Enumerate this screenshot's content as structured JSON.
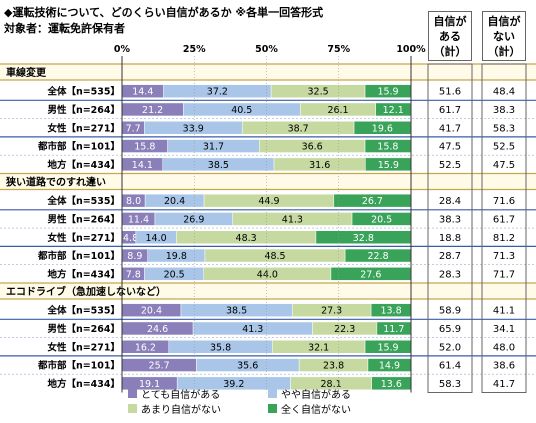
{
  "title": "◆運転技術について、どのくらい自信があるか ※各単一回答形式",
  "subtitle": "対象者：運転免許保有者",
  "header_confident": [
    "自信が",
    "ある",
    "（計）"
  ],
  "header_not_confident": [
    "自信が",
    "ない",
    "（計）"
  ],
  "chart_data": {
    "type": "bar",
    "orientation": "horizontal",
    "stacked": true,
    "xlim": [
      0,
      100
    ],
    "x_ticks": [
      "0%",
      "25%",
      "50%",
      "75%",
      "100%"
    ],
    "series": [
      {
        "name": "とても自信がある",
        "color": "#8a7fb8"
      },
      {
        "name": "やや自信がある",
        "color": "#a9c6e8"
      },
      {
        "name": "あまり自信がない",
        "color": "#c5d9a0"
      },
      {
        "name": "全く自信がない",
        "color": "#3aa35a"
      }
    ],
    "groups": [
      {
        "title": "車線変更",
        "rows": [
          {
            "label": "全体【n=535】",
            "values": [
              14.4,
              37.2,
              32.5,
              15.9
            ],
            "confident": "51.6",
            "not_confident": "48.4"
          },
          {
            "label": "男性【n=264】",
            "values": [
              21.2,
              40.5,
              26.1,
              12.1
            ],
            "confident": "61.7",
            "not_confident": "38.3"
          },
          {
            "label": "女性【n=271】",
            "values": [
              7.7,
              33.9,
              38.7,
              19.6
            ],
            "confident": "41.7",
            "not_confident": "58.3"
          },
          {
            "label": "都市部【n=101】",
            "values": [
              15.8,
              31.7,
              36.6,
              15.8
            ],
            "confident": "47.5",
            "not_confident": "52.5"
          },
          {
            "label": "地方【n=434】",
            "values": [
              14.1,
              38.5,
              31.6,
              15.9
            ],
            "confident": "52.5",
            "not_confident": "47.5"
          }
        ]
      },
      {
        "title": "狭い道路でのすれ違い",
        "rows": [
          {
            "label": "全体【n=535】",
            "values": [
              8.0,
              20.4,
              44.9,
              26.7
            ],
            "confident": "28.4",
            "not_confident": "71.6"
          },
          {
            "label": "男性【n=264】",
            "values": [
              11.4,
              26.9,
              41.3,
              20.5
            ],
            "confident": "38.3",
            "not_confident": "61.7"
          },
          {
            "label": "女性【n=271】",
            "values": [
              4.8,
              14.0,
              48.3,
              32.8
            ],
            "confident": "18.8",
            "not_confident": "81.2"
          },
          {
            "label": "都市部【n=101】",
            "values": [
              8.9,
              19.8,
              48.5,
              22.8
            ],
            "confident": "28.7",
            "not_confident": "71.3"
          },
          {
            "label": "地方【n=434】",
            "values": [
              7.8,
              20.5,
              44.0,
              27.6
            ],
            "confident": "28.3",
            "not_confident": "71.7"
          }
        ]
      },
      {
        "title": "エコドライブ（急加速しないなど）",
        "rows": [
          {
            "label": "全体【n=535】",
            "values": [
              20.4,
              38.5,
              27.3,
              13.8
            ],
            "confident": "58.9",
            "not_confident": "41.1"
          },
          {
            "label": "男性【n=264】",
            "values": [
              24.6,
              41.3,
              22.3,
              11.7
            ],
            "confident": "65.9",
            "not_confident": "34.1"
          },
          {
            "label": "女性【n=271】",
            "values": [
              16.2,
              35.8,
              32.1,
              15.9
            ],
            "confident": "52.0",
            "not_confident": "48.0"
          },
          {
            "label": "都市部【n=101】",
            "values": [
              25.7,
              35.6,
              23.8,
              14.9
            ],
            "confident": "61.4",
            "not_confident": "38.6"
          },
          {
            "label": "地方【n=434】",
            "values": [
              19.1,
              39.2,
              28.1,
              13.6
            ],
            "confident": "58.3",
            "not_confident": "41.7"
          }
        ]
      }
    ]
  }
}
